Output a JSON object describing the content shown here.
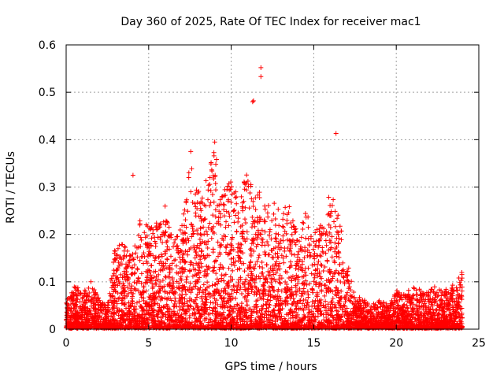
{
  "chart_data": {
    "type": "scatter",
    "title": "Day 360 of 2025, Rate Of TEC Index for receiver mac1",
    "xlabel": "GPS time / hours",
    "ylabel": "ROTI / TECUs",
    "xlim": [
      0,
      25
    ],
    "ylim": [
      0,
      0.6
    ],
    "x_ticks": [
      "0",
      "5",
      "10",
      "15",
      "20",
      "25"
    ],
    "y_ticks": [
      "0",
      "0.1",
      "0.2",
      "0.3",
      "0.4",
      "0.5",
      "0.6"
    ],
    "grid": true,
    "legend": "none",
    "marker": "plus",
    "color": "#ff0000",
    "envelope": {
      "x": [
        0,
        0.5,
        1,
        1.5,
        2,
        2.5,
        3,
        3.5,
        4,
        4.5,
        5,
        5.5,
        6,
        6.5,
        7,
        7.5,
        8,
        8.5,
        9,
        9.5,
        10,
        10.5,
        11,
        11.5,
        12,
        12.5,
        13,
        13.5,
        14,
        14.5,
        15,
        15.5,
        16,
        16.5,
        17,
        17.5,
        18,
        18.5,
        19,
        19.5,
        20,
        20.5,
        21,
        21.5,
        22,
        22.5,
        23,
        23.5,
        24
      ],
      "y": [
        0.06,
        0.09,
        0.08,
        0.1,
        0.06,
        0.05,
        0.18,
        0.18,
        0.15,
        0.25,
        0.21,
        0.23,
        0.26,
        0.2,
        0.22,
        0.35,
        0.3,
        0.32,
        0.38,
        0.28,
        0.33,
        0.27,
        0.35,
        0.3,
        0.28,
        0.27,
        0.25,
        0.26,
        0.22,
        0.26,
        0.2,
        0.22,
        0.3,
        0.24,
        0.15,
        0.07,
        0.06,
        0.05,
        0.06,
        0.05,
        0.08,
        0.07,
        0.09,
        0.08,
        0.08,
        0.09,
        0.08,
        0.09,
        0.12
      ]
    },
    "outliers": [
      {
        "x": 4.05,
        "y": 0.325
      },
      {
        "x": 11.3,
        "y": 0.48
      },
      {
        "x": 11.35,
        "y": 0.482
      },
      {
        "x": 11.8,
        "y": 0.552
      },
      {
        "x": 11.8,
        "y": 0.533
      },
      {
        "x": 16.35,
        "y": 0.413
      },
      {
        "x": 9.0,
        "y": 0.395
      },
      {
        "x": 7.55,
        "y": 0.375
      }
    ]
  }
}
